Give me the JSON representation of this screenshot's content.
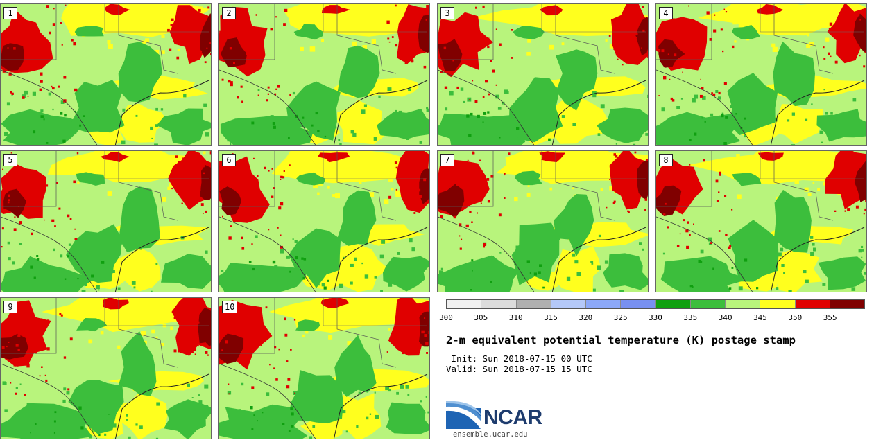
{
  "members": [
    "1",
    "2",
    "3",
    "4",
    "5",
    "6",
    "7",
    "8",
    "9",
    "10"
  ],
  "colorbar": {
    "ticks": [
      "300",
      "305",
      "310",
      "315",
      "320",
      "325",
      "330",
      "335",
      "340",
      "345",
      "350",
      "355"
    ],
    "colors": [
      "#f0f0f0",
      "#dcdcdc",
      "#b0b0b0",
      "#b4c8f8",
      "#8ca8f8",
      "#7890f0",
      "#10a010",
      "#3cbe3c",
      "#b8f47c",
      "#ffff1e",
      "#e00000",
      "#800000"
    ]
  },
  "map_colors": {
    "light_green": "#b8f47c",
    "green": "#3cbe3c",
    "dark_green": "#10a010",
    "yellow": "#ffff1e",
    "red": "#e00000",
    "dark_red": "#800000"
  },
  "title": "2-m equivalent potential temperature (K) postage stamp",
  "init": " Init: Sun 2018-07-15 00 UTC",
  "valid": "Valid: Sun 2018-07-15 15 UTC",
  "logo": {
    "text": "NCAR",
    "url": "ensemble.ucar.edu"
  }
}
